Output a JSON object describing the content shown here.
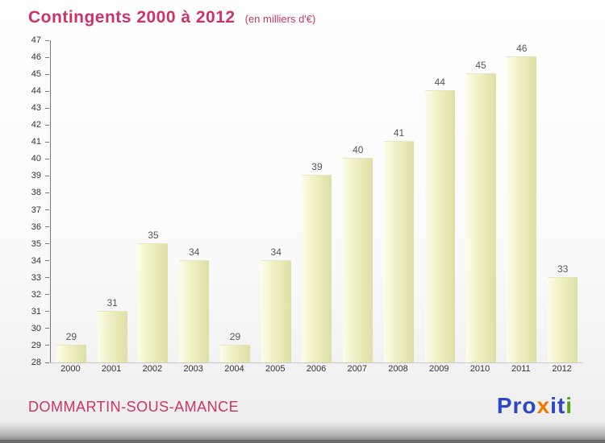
{
  "chart_data": {
    "type": "bar",
    "title": "Contingents 2000 à 2012",
    "subtitle": "(en milliers d'€)",
    "categories": [
      "2000",
      "2001",
      "2002",
      "2003",
      "2004",
      "2005",
      "2006",
      "2007",
      "2008",
      "2009",
      "2010",
      "2011",
      "2012"
    ],
    "values": [
      29,
      31,
      35,
      34,
      29,
      34,
      39,
      40,
      41,
      44,
      45,
      46,
      33
    ],
    "ylim": [
      28,
      47
    ],
    "ytick_step": 1,
    "grid": false,
    "legend_position": "none",
    "bar_color": "#efefc2",
    "title_color": "#cc3366"
  },
  "footer": {
    "location": "DOMMARTIN-SOUS-AMANCE",
    "logo_letters": [
      {
        "char": "P",
        "color": "#2d46c8"
      },
      {
        "char": "r",
        "color": "#2d46c8"
      },
      {
        "char": "o",
        "color": "#2d46c8"
      },
      {
        "char": "x",
        "color": "#f07800"
      },
      {
        "char": "i",
        "color": "#2d46c8"
      },
      {
        "char": "t",
        "color": "#2d46c8"
      },
      {
        "char": "i",
        "color": "#58a618"
      }
    ]
  }
}
